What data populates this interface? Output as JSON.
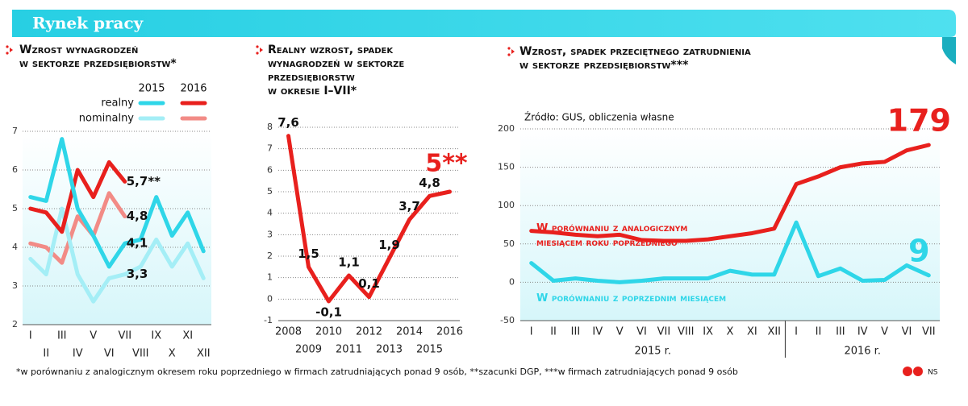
{
  "header": {
    "title": "Rynek pracy"
  },
  "chart_data": [
    {
      "type": "line",
      "title": [
        "Wzrost wynagrodzeń",
        "w sektorze przedsiębiorstw*"
      ],
      "categories": [
        "I",
        "II",
        "III",
        "IV",
        "V",
        "VI",
        "VII",
        "VIII",
        "IX",
        "X",
        "XI",
        "XII"
      ],
      "legend": {
        "columns": [
          "2015",
          "2016"
        ],
        "rows": [
          "realny",
          "nominalny"
        ]
      },
      "series": [
        {
          "color": "#2fd6e8",
          "values": [
            5.3,
            5.2,
            6.8,
            5.0,
            4.3,
            3.5,
            4.1,
            4.2,
            5.3,
            4.3,
            4.9,
            3.9
          ],
          "value_labels": [
            null,
            null,
            null,
            null,
            null,
            null,
            "4,1",
            null,
            null,
            null,
            null,
            null
          ]
        },
        {
          "color": "#e8201d",
          "values": [
            5.0,
            4.9,
            4.4,
            6.0,
            5.3,
            6.2,
            5.7,
            null,
            null,
            null,
            null,
            null
          ],
          "value_labels": [
            null,
            null,
            null,
            null,
            null,
            null,
            "5,7**",
            null,
            null,
            null,
            null,
            null
          ]
        },
        {
          "color": "#a4eef6",
          "values": [
            3.7,
            3.3,
            5.0,
            3.3,
            2.6,
            3.2,
            3.3,
            3.5,
            4.2,
            3.5,
            4.1,
            3.2
          ],
          "value_labels": [
            null,
            null,
            null,
            null,
            null,
            null,
            "3,3",
            null,
            null,
            null,
            null,
            null
          ]
        },
        {
          "color": "#f28b86",
          "values": [
            4.1,
            4.0,
            3.6,
            4.8,
            4.3,
            5.4,
            4.8,
            null,
            null,
            null,
            null,
            null
          ],
          "value_labels": [
            null,
            null,
            null,
            null,
            null,
            null,
            "4,8",
            null,
            null,
            null,
            null,
            null
          ]
        }
      ],
      "ylim": [
        2,
        7
      ],
      "yticks": [
        2,
        3,
        4,
        5,
        6,
        7
      ],
      "grid": true
    },
    {
      "type": "line",
      "title": [
        "Realny wzrost, spadek",
        "wynagrodzeń w sektorze",
        "przedsiębiorstw",
        "w okresie I–VII*"
      ],
      "categories": [
        "2008",
        "2009",
        "2010",
        "2011",
        "2012",
        "2013",
        "2014",
        "2015",
        "2016"
      ],
      "color": "#e8201d",
      "values": [
        7.6,
        1.5,
        -0.1,
        1.1,
        0.1,
        1.9,
        3.7,
        4.8,
        5
      ],
      "value_labels": [
        "7,6",
        "1,5",
        "-0,1",
        "1,1",
        "0,1",
        "1,9",
        "3,7",
        "4,8",
        "5**"
      ],
      "ylim": [
        -1,
        8
      ],
      "yticks": [
        -1,
        0,
        1,
        2,
        3,
        4,
        5,
        6,
        7,
        8
      ],
      "grid": true
    },
    {
      "type": "line",
      "title": [
        "Wzrost, spadek przeciętnego zatrudnienia",
        "w sektorze przedsiębiorstw***"
      ],
      "source": "Źródło: GUS, obliczenia własne",
      "categories": [
        "I",
        "II",
        "III",
        "IV",
        "V",
        "VI",
        "VII",
        "VIII",
        "IX",
        "X",
        "XI",
        "XII",
        "I",
        "II",
        "III",
        "IV",
        "V",
        "VI",
        "VII"
      ],
      "groups": [
        "2015 r.",
        "2016 r."
      ],
      "series": [
        {
          "name": "W porównaniu z analogicznym miesiącem roku poprzedniego",
          "color": "#e8201d",
          "values": [
            67,
            65,
            62,
            60,
            62,
            55,
            54,
            54,
            56,
            60,
            64,
            70,
            128,
            138,
            150,
            155,
            157,
            172,
            179
          ]
        },
        {
          "name": "W porównaniu z poprzednim miesiącem",
          "color": "#2fd6e8",
          "values": [
            25,
            2,
            5,
            2,
            0,
            2,
            5,
            5,
            5,
            15,
            10,
            10,
            78,
            8,
            18,
            2,
            3,
            22,
            9
          ]
        }
      ],
      "end_labels": true,
      "ylim": [
        -50,
        200
      ],
      "yticks": [
        -50,
        0,
        50,
        100,
        150,
        200
      ],
      "grid": true
    }
  ],
  "footnote": "*w porównaniu z analogicznym okresem roku poprzedniego w firmach zatrudniających ponad 9 osób, **szacunki DGP, ***w firmach zatrudniających ponad 9 osób",
  "credit": "NS"
}
